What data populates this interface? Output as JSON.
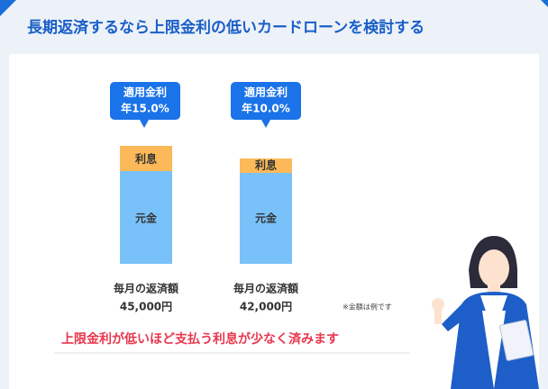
{
  "header": {
    "title": "長期返済するなら上限金利の低いカードローンを検討する"
  },
  "plans": [
    {
      "bubble_line1": "適用金利",
      "bubble_line2": "年15.0%",
      "interest_label": "利息",
      "principal_label": "元金",
      "payment_label": "毎月の返済額",
      "payment_amount": "45,000円"
    },
    {
      "bubble_line1": "適用金利",
      "bubble_line2": "年10.0%",
      "interest_label": "利息",
      "principal_label": "元金",
      "payment_label": "毎月の返済額",
      "payment_amount": "42,000円"
    }
  ],
  "note": "※金額は例です",
  "conclusion": "上限金利が低いほど支払う利息が少なく済みます"
}
